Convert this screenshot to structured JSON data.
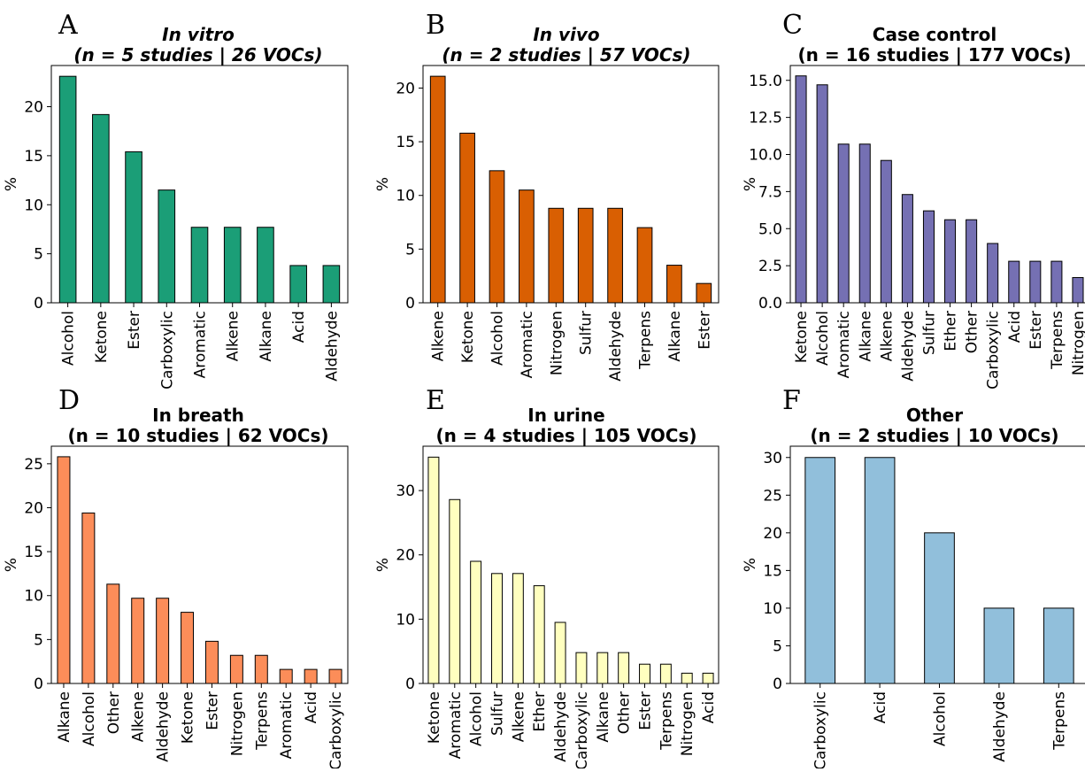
{
  "chart_data": [
    {
      "type": "bar",
      "letter": "A",
      "title_line1": "In vitro",
      "title_line2": "(n = 5 studies | 26 VOCs)",
      "italic": true,
      "ylabel": "%",
      "xlabel": "",
      "color": "#1b9e77",
      "categories": [
        "Alcohol",
        "Ketone",
        "Ester",
        "Carboxylic",
        "Aromatic",
        "Alkene",
        "Alkane",
        "Acid",
        "Aldehyde"
      ],
      "values": [
        23.1,
        19.2,
        15.4,
        11.5,
        7.7,
        7.7,
        7.7,
        3.8,
        3.8
      ],
      "ylim": [
        0,
        24.2
      ],
      "yticks": [
        0,
        5,
        10,
        15,
        20
      ],
      "ytick_labels": [
        "0",
        "5",
        "10",
        "15",
        "20"
      ]
    },
    {
      "type": "bar",
      "letter": "B",
      "title_line1": "In vivo",
      "title_line2": "(n = 2 studies | 57 VOCs)",
      "italic": true,
      "ylabel": "%",
      "xlabel": "",
      "color": "#d95f02",
      "categories": [
        "Alkene",
        "Ketone",
        "Alcohol",
        "Aromatic",
        "Nitrogen",
        "Sulfur",
        "Aldehyde",
        "Terpens",
        "Alkane",
        "Ester"
      ],
      "values": [
        21.1,
        15.8,
        12.3,
        10.5,
        8.8,
        8.8,
        8.8,
        7.0,
        3.5,
        1.8
      ],
      "ylim": [
        0,
        22.1
      ],
      "yticks": [
        0,
        5,
        10,
        15,
        20
      ],
      "ytick_labels": [
        "0",
        "5",
        "10",
        "15",
        "20"
      ]
    },
    {
      "type": "bar",
      "letter": "C",
      "title_line1": "Case control",
      "title_line2": "(n = 16 studies | 177 VOCs)",
      "italic": false,
      "ylabel": "%",
      "xlabel": "",
      "color": "#7570b3",
      "categories": [
        "Ketone",
        "Alcohol",
        "Aromatic",
        "Alkane",
        "Alkene",
        "Aldehyde",
        "Sulfur",
        "Ether",
        "Other",
        "Carboxylic",
        "Acid",
        "Ester",
        "Terpens",
        "Nitrogen"
      ],
      "values": [
        15.3,
        14.7,
        10.7,
        10.7,
        9.6,
        7.3,
        6.2,
        5.6,
        5.6,
        4.0,
        2.8,
        2.8,
        2.8,
        1.7
      ],
      "ylim": [
        0,
        16.0
      ],
      "yticks": [
        0,
        2.5,
        5,
        7.5,
        10,
        12.5,
        15
      ],
      "ytick_labels": [
        "0.0",
        "2.5",
        "5.0",
        "7.5",
        "10.0",
        "12.5",
        "15.0"
      ]
    },
    {
      "type": "bar",
      "letter": "D",
      "title_line1": "In breath",
      "title_line2": "(n = 10 studies | 62 VOCs)",
      "italic": false,
      "ylabel": "%",
      "xlabel": "",
      "color": "#fc8d59",
      "categories": [
        "Alkane",
        "Alcohol",
        "Other",
        "Alkene",
        "Aldehyde",
        "Ketone",
        "Ester",
        "Nitrogen",
        "Terpens",
        "Aromatic",
        "Acid",
        "Carboxylic"
      ],
      "values": [
        25.8,
        19.4,
        11.3,
        9.7,
        9.7,
        8.1,
        4.8,
        3.2,
        3.2,
        1.6,
        1.6,
        1.6
      ],
      "ylim": [
        0,
        27.0
      ],
      "yticks": [
        0,
        5,
        10,
        15,
        20,
        25
      ],
      "ytick_labels": [
        "0",
        "5",
        "10",
        "15",
        "20",
        "25"
      ]
    },
    {
      "type": "bar",
      "letter": "E",
      "title_line1": "In urine",
      "title_line2": "(n = 4 studies | 105 VOCs)",
      "italic": false,
      "ylabel": "%",
      "xlabel": "",
      "color": "#ffffbf",
      "categories": [
        "Ketone",
        "Aromatic",
        "Alcohol",
        "Sulfur",
        "Alkene",
        "Ether",
        "Aldehyde",
        "Carboxylic",
        "Alkane",
        "Other",
        "Ester",
        "Terpens",
        "Nitrogen",
        "Acid"
      ],
      "values": [
        35.2,
        28.6,
        19.0,
        17.1,
        17.1,
        15.2,
        9.5,
        4.8,
        4.8,
        4.8,
        3.0,
        3.0,
        1.6,
        1.6
      ],
      "ylim": [
        0,
        36.9
      ],
      "yticks": [
        0,
        10,
        20,
        30
      ],
      "ytick_labels": [
        "0",
        "10",
        "20",
        "30"
      ]
    },
    {
      "type": "bar",
      "letter": "F",
      "title_line1": "Other",
      "title_line2": "(n = 2 studies | 10 VOCs)",
      "italic": false,
      "ylabel": "%",
      "xlabel": "",
      "color": "#91bfdb",
      "categories": [
        "Carboxylic",
        "Acid",
        "Alcohol",
        "Aldehyde",
        "Terpens"
      ],
      "values": [
        30,
        30,
        20,
        10,
        10
      ],
      "ylim": [
        0,
        31.5
      ],
      "yticks": [
        0,
        5,
        10,
        15,
        20,
        25,
        30
      ],
      "ytick_labels": [
        "0",
        "5",
        "10",
        "15",
        "20",
        "25",
        "30"
      ]
    }
  ]
}
